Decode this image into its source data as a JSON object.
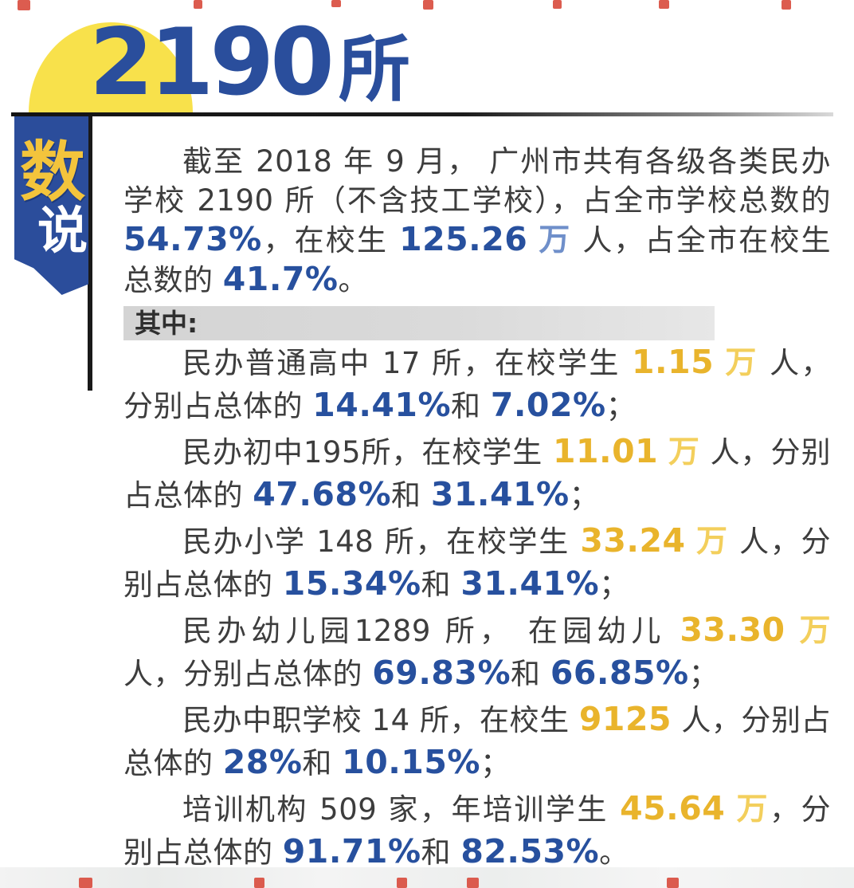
{
  "headline": {
    "number": "2190",
    "unit": "所"
  },
  "ribbon": {
    "char_top": "数",
    "char_bottom": "说"
  },
  "intro": {
    "segments": [
      {
        "t": "截至 2018 年 9 月， 广州市共有各级各类民办学校 2190 所（不含技工学校），占全市学校总数的 ",
        "s": "n"
      },
      {
        "t": "54.73%",
        "s": "b"
      },
      {
        "t": "，在校生 ",
        "s": "n"
      },
      {
        "t": "125.26",
        "s": "b"
      },
      {
        "t": " ",
        "s": "n"
      },
      {
        "t": "万",
        "s": "bu"
      },
      {
        "t": " 人，占全市在校生总数的 ",
        "s": "n"
      },
      {
        "t": "41.7%",
        "s": "b"
      },
      {
        "t": "。",
        "s": "n"
      }
    ]
  },
  "section": {
    "label": "其中:"
  },
  "items": [
    {
      "segments": [
        {
          "t": "民办普通高中 17 所，在校学生 ",
          "s": "n"
        },
        {
          "t": "1.15",
          "s": "g"
        },
        {
          "t": " ",
          "s": "n"
        },
        {
          "t": "万",
          "s": "gu"
        },
        {
          "t": " 人，分别占总体的 ",
          "s": "n"
        },
        {
          "t": "14.41%",
          "s": "b"
        },
        {
          "t": "和 ",
          "s": "n"
        },
        {
          "t": "7.02%",
          "s": "b"
        },
        {
          "t": "；",
          "s": "n"
        }
      ]
    },
    {
      "segments": [
        {
          "t": "民办初中195所，在校学生 ",
          "s": "n"
        },
        {
          "t": "11.01",
          "s": "g"
        },
        {
          "t": " ",
          "s": "n"
        },
        {
          "t": "万",
          "s": "gu"
        },
        {
          "t": " 人，分别占总体的 ",
          "s": "n"
        },
        {
          "t": "47.68%",
          "s": "b"
        },
        {
          "t": "和 ",
          "s": "n"
        },
        {
          "t": "31.41%",
          "s": "b"
        },
        {
          "t": "；",
          "s": "n"
        }
      ]
    },
    {
      "segments": [
        {
          "t": "民办小学 148 所，在校学生 ",
          "s": "n"
        },
        {
          "t": "33.24",
          "s": "g"
        },
        {
          "t": " ",
          "s": "n"
        },
        {
          "t": "万",
          "s": "gu"
        },
        {
          "t": " 人，分别占总体的 ",
          "s": "n"
        },
        {
          "t": "15.34%",
          "s": "b"
        },
        {
          "t": "和 ",
          "s": "n"
        },
        {
          "t": "31.41%",
          "s": "b"
        },
        {
          "t": "；",
          "s": "n"
        }
      ]
    },
    {
      "segments": [
        {
          "t": "民办幼儿园1289 所， 在园幼儿 ",
          "s": "n"
        },
        {
          "t": "33.30",
          "s": "g"
        },
        {
          "t": " ",
          "s": "n"
        },
        {
          "t": "万",
          "s": "gu"
        },
        {
          "t": " 人，分别占总体的 ",
          "s": "n"
        },
        {
          "t": "69.83%",
          "s": "b"
        },
        {
          "t": "和 ",
          "s": "n"
        },
        {
          "t": "66.85%",
          "s": "b"
        },
        {
          "t": "；",
          "s": "n"
        }
      ]
    },
    {
      "segments": [
        {
          "t": "民办中职学校 14 所，在校生 ",
          "s": "n"
        },
        {
          "t": "9125",
          "s": "g"
        },
        {
          "t": " 人，分别占总体的 ",
          "s": "n"
        },
        {
          "t": "28%",
          "s": "b"
        },
        {
          "t": "和 ",
          "s": "n"
        },
        {
          "t": "10.15%",
          "s": "b"
        },
        {
          "t": "；",
          "s": "n"
        }
      ]
    },
    {
      "segments": [
        {
          "t": "培训机构 509 家，年培训学生 ",
          "s": "n"
        },
        {
          "t": "45.64",
          "s": "g"
        },
        {
          "t": " ",
          "s": "n"
        },
        {
          "t": "万",
          "s": "gu"
        },
        {
          "t": "，分别占总体的 ",
          "s": "n"
        },
        {
          "t": "91.71%",
          "s": "b"
        },
        {
          "t": "和 ",
          "s": "n"
        },
        {
          "t": "82.53%",
          "s": "b"
        },
        {
          "t": "。",
          "s": "n"
        }
      ]
    }
  ],
  "colors": {
    "accent_blue": "#2a4e9c",
    "stat_blue": "#27509e",
    "stat_gold": "#e9b42c",
    "dome_yellow": "#f8e14b",
    "ribbon_blue": "#2b4d9b",
    "body_text": "#3d3d3d",
    "section_bar_gray": "#d4d4d4"
  }
}
